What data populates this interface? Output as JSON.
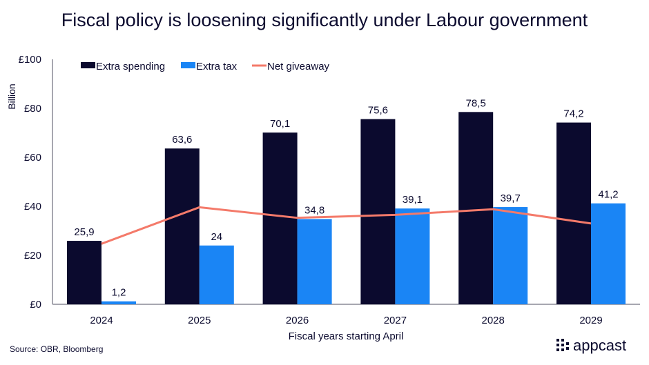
{
  "title": "Fiscal policy is loosening significantly under Labour government",
  "source": "Source: OBR, Bloomberg",
  "logo": "appcast",
  "colors": {
    "spending": "#0b0a2e",
    "tax": "#1a85f5",
    "net": "#f47a6a",
    "text": "#0b0a2e"
  },
  "chart_data": {
    "type": "bar",
    "title": "Fiscal policy is loosening significantly under Labour government",
    "xlabel": "Fiscal years starting April",
    "ylabel": "Billion",
    "ylim": [
      0,
      100
    ],
    "yticks": [
      "£0",
      "£20",
      "£40",
      "£60",
      "£80",
      "£100"
    ],
    "ytick_values": [
      0,
      20,
      40,
      60,
      80,
      100
    ],
    "categories": [
      "2024",
      "2025",
      "2026",
      "2027",
      "2028",
      "2029"
    ],
    "legend": "top",
    "grid": false,
    "series": [
      {
        "name": "Extra spending",
        "type": "bar",
        "values": [
          25.9,
          63.6,
          70.1,
          75.6,
          78.5,
          74.2
        ],
        "labels": [
          "25,9",
          "63,6",
          "70,1",
          "75,6",
          "78,5",
          "74,2"
        ]
      },
      {
        "name": "Extra tax",
        "type": "bar",
        "values": [
          1.2,
          24,
          34.8,
          39.1,
          39.7,
          41.2
        ],
        "labels": [
          "1,2",
          "24",
          "34,8",
          "39,1",
          "39,7",
          "41,2"
        ]
      },
      {
        "name": "Net giveaway",
        "type": "line",
        "values": [
          24.7,
          39.6,
          35.3,
          36.5,
          38.8,
          33.0
        ]
      }
    ]
  }
}
